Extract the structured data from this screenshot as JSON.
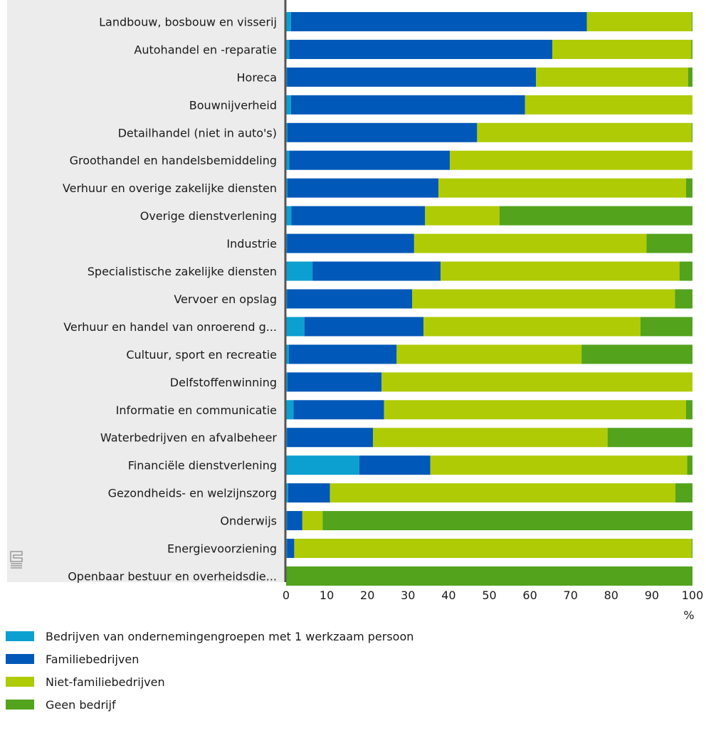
{
  "chart_data": {
    "type": "bar",
    "orientation": "horizontal",
    "stacked": true,
    "unit_label": "%",
    "xlim": [
      0,
      100
    ],
    "x_ticks": [
      "0",
      "10",
      "20",
      "30",
      "40",
      "50",
      "60",
      "70",
      "80",
      "90",
      "100"
    ],
    "grid": false,
    "legend_position": "bottom-left",
    "categories": [
      "Landbouw, bosbouw en visserij",
      "Autohandel en -reparatie",
      "Horeca",
      "Bouwnijverheid",
      "Detailhandel (niet in auto's)",
      "Groothandel en handelsbemiddeling",
      "Verhuur en overige zakelijke diensten",
      "Overige dienstverlening",
      "Industrie",
      "Specialistische zakelijke diensten",
      "Vervoer en opslag",
      "Verhuur en handel van onroerend g...",
      "Cultuur, sport en recreatie",
      "Delfstoffenwinning",
      "Informatie en communicatie",
      "Waterbedrijven en afvalbeheer",
      "Financiële dienstverlening",
      "Gezondheids- en welzijnszorg",
      "Onderwijs",
      "Energievoorziening",
      "Openbaar bestuur en overheidsdie..."
    ],
    "series": [
      {
        "name": "Bedrijven van ondernemingengroepen met 1 werkzaam persoon",
        "color": "#0ba0d0",
        "values": [
          1.2,
          0.8,
          0.2,
          1.2,
          0.3,
          0.8,
          0.3,
          1.3,
          0.2,
          6.5,
          0.2,
          4.5,
          0.7,
          0.3,
          1.8,
          0.2,
          18,
          0.5,
          0.2,
          0.2,
          0
        ]
      },
      {
        "name": "Familiebedrijven",
        "color": "#0058b8",
        "values": [
          72.8,
          64.7,
          61.3,
          57.6,
          46.7,
          39.5,
          37.2,
          32.9,
          31.3,
          31.5,
          30.8,
          29.3,
          26.5,
          23.2,
          22.3,
          21.2,
          17.5,
          10.3,
          3.8,
          1.8,
          0
        ]
      },
      {
        "name": "Niet-familiebedrijven",
        "color": "#afcb05",
        "values": [
          25.8,
          34.2,
          37.4,
          41.2,
          52.8,
          59.7,
          60.9,
          18.3,
          57.2,
          58.8,
          64.7,
          53.4,
          45.5,
          76.5,
          74.3,
          57.7,
          63.2,
          85.0,
          5.0,
          97.8,
          0
        ]
      },
      {
        "name": "Geen bedrijf",
        "color": "#53a31d",
        "values": [
          0.2,
          0.3,
          1.1,
          0,
          0.2,
          0,
          1.6,
          47.5,
          11.3,
          3.2,
          4.3,
          12.8,
          27.3,
          0,
          1.6,
          20.9,
          1.3,
          4.2,
          91.0,
          0.2,
          100
        ]
      }
    ]
  }
}
